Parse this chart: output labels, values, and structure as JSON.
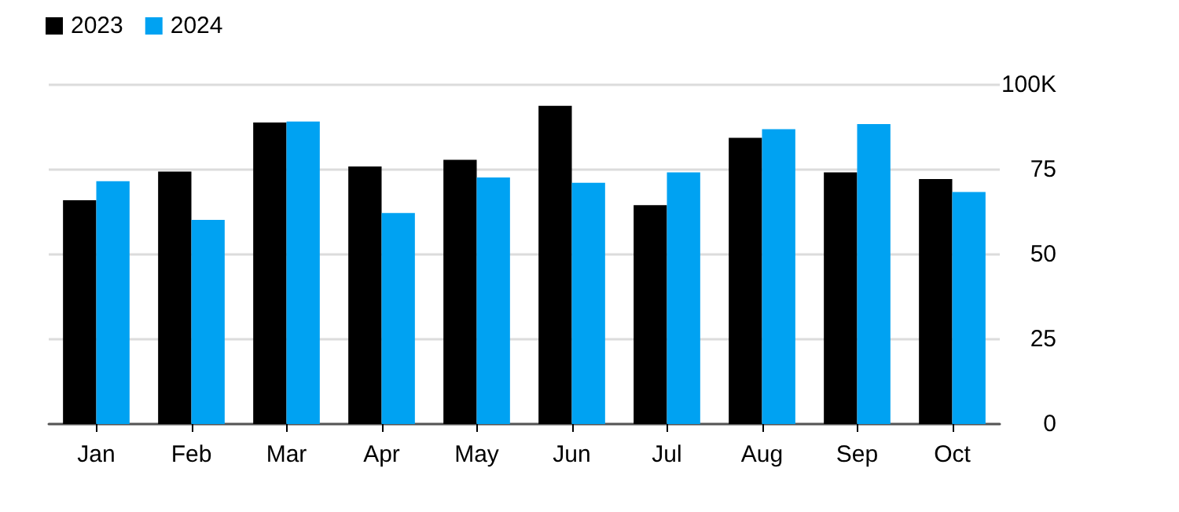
{
  "chart_data": {
    "type": "bar",
    "categories": [
      "Jan",
      "Feb",
      "Mar",
      "Apr",
      "May",
      "Jun",
      "Jul",
      "Aug",
      "Sep",
      "Oct"
    ],
    "series": [
      {
        "name": "2023",
        "color": "#000000",
        "values": [
          66,
          74.4,
          88.9,
          75.9,
          77.9,
          93.8,
          64.5,
          84.4,
          74.2,
          72.2
        ]
      },
      {
        "name": "2024",
        "color": "#00a2f2",
        "values": [
          71.6,
          60.2,
          89.2,
          62.2,
          72.7,
          71.1,
          74.2,
          86.9,
          88.4,
          68.4
        ]
      }
    ],
    "ylim": [
      0,
      100
    ],
    "yticks": [
      0,
      25,
      50,
      75,
      {
        "value": 100,
        "label": "100K"
      }
    ],
    "grid": "y",
    "legend": "top left"
  }
}
